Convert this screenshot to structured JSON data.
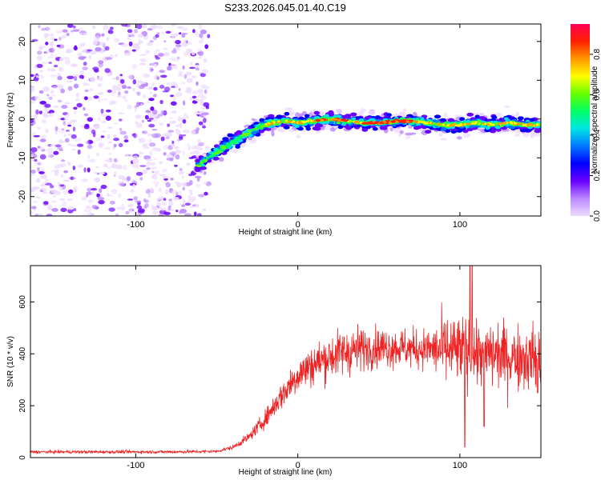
{
  "title": "S233.2026.045.01.40.C19",
  "colors": {
    "snr_line": "#ee2222",
    "background_speckle": "#8a2be2",
    "colormap": [
      "#eeddff",
      "#bb88ff",
      "#6a00ff",
      "#0000ff",
      "#0077ff",
      "#00e5e5",
      "#00ff66",
      "#66ff00",
      "#ffff00",
      "#ff9900",
      "#ff2200",
      "#ff0055"
    ]
  },
  "chart_data": [
    {
      "type": "heatmap",
      "name": "spectrogram",
      "xlabel": "Height of straight line (km)",
      "ylabel": "Frequency (Hz)",
      "xlim": [
        -165,
        150
      ],
      "ylim": [
        -25,
        24.5
      ],
      "xticks": [
        -100,
        0,
        100
      ],
      "xtick_labels": [
        "-100",
        "0",
        "100"
      ],
      "yticks": [
        -20,
        -10,
        0,
        10,
        20
      ],
      "ytick_labels": [
        "-20",
        "-10",
        "0",
        "10",
        "20"
      ],
      "noise_region_x": [
        -165,
        -58
      ],
      "signal_ridge": {
        "x": [
          -62,
          -55,
          -48,
          -40,
          -32,
          -24,
          -16,
          -8,
          0,
          10,
          20,
          30,
          40,
          50,
          60,
          70,
          80,
          90,
          100,
          110,
          120,
          130,
          140,
          150
        ],
        "y": [
          -12,
          -10,
          -8,
          -6,
          -4,
          -2,
          -1,
          -0.5,
          -1,
          -0.5,
          0,
          -0.5,
          -1,
          -1,
          -0.5,
          -0.5,
          -1,
          -1.5,
          -1.5,
          -1,
          -1.5,
          -1,
          -1.5,
          -1.5
        ]
      },
      "peak_amplitude_x_ranges": [
        [
          10,
          30
        ],
        [
          40,
          70
        ]
      ],
      "colorbar": {
        "label": "Normalized spectral amplitude",
        "range": [
          0,
          0.95
        ],
        "ticks": [
          0.0,
          0.2,
          0.4,
          0.6,
          0.8
        ],
        "tick_labels": [
          "0.0",
          "0.2",
          "0.4",
          "0.6",
          "0.8"
        ]
      }
    },
    {
      "type": "line",
      "name": "snr",
      "xlabel": "Height of straight line (km)",
      "ylabel": "SNR (10 * v/v)",
      "xlim": [
        -165,
        150
      ],
      "ylim": [
        0,
        740
      ],
      "xticks": [
        -100,
        0,
        100
      ],
      "xtick_labels": [
        "-100",
        "0",
        "100"
      ],
      "yticks": [
        0,
        200,
        400,
        600
      ],
      "ytick_labels": [
        "0",
        "200",
        "400",
        "600"
      ],
      "envelope": {
        "x": [
          -165,
          -120,
          -80,
          -50,
          -40,
          -30,
          -20,
          -10,
          0,
          10,
          20,
          30,
          40,
          50,
          60,
          70,
          80,
          90,
          100,
          110,
          120,
          130,
          140,
          150
        ],
        "y": [
          22,
          22,
          22,
          24,
          40,
          80,
          150,
          240,
          320,
          360,
          390,
          410,
          420,
          425,
          425,
          420,
          420,
          415,
          410,
          400,
          400,
          390,
          390,
          380
        ]
      },
      "dips": [
        {
          "x": 103,
          "y": 40
        },
        {
          "x": 115,
          "y": 120
        },
        {
          "x": 148,
          "y": 250
        }
      ],
      "max_value": 740
    }
  ]
}
